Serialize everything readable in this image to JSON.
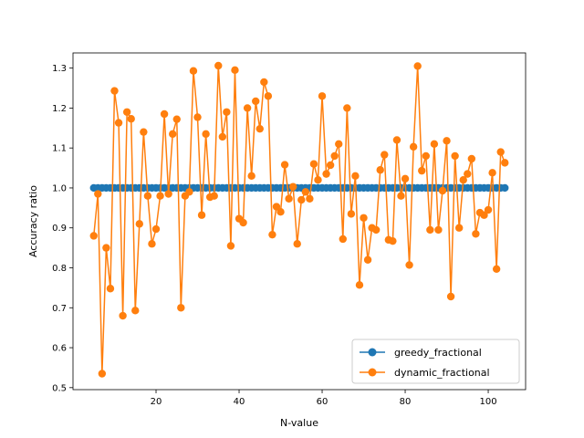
{
  "chart_data": {
    "type": "line",
    "title": "",
    "xlabel": "N-value",
    "ylabel": "Accuracy ratio",
    "xlim": [
      0,
      109
    ],
    "ylim": [
      0.495,
      1.338
    ],
    "xticks": [
      20,
      40,
      60,
      80,
      100
    ],
    "yticks": [
      0.5,
      0.6,
      0.7,
      0.8,
      0.9,
      1.0,
      1.1,
      1.2,
      1.3
    ],
    "grid": false,
    "legend_position": "bottom-right",
    "x": [
      5,
      6,
      7,
      8,
      9,
      10,
      11,
      12,
      13,
      14,
      15,
      16,
      17,
      18,
      19,
      20,
      21,
      22,
      23,
      24,
      25,
      26,
      27,
      28,
      29,
      30,
      31,
      32,
      33,
      34,
      35,
      36,
      37,
      38,
      39,
      40,
      41,
      42,
      43,
      44,
      45,
      46,
      47,
      48,
      49,
      50,
      51,
      52,
      53,
      54,
      55,
      56,
      57,
      58,
      59,
      60,
      61,
      62,
      63,
      64,
      65,
      66,
      67,
      68,
      69,
      70,
      71,
      72,
      73,
      74,
      75,
      76,
      77,
      78,
      79,
      80,
      81,
      82,
      83,
      84,
      85,
      86,
      87,
      88,
      89,
      90,
      91,
      92,
      93,
      94,
      95,
      96,
      97,
      98,
      99,
      100,
      101,
      102,
      103,
      104
    ],
    "series": [
      {
        "name": "greedy_fractional",
        "color": "#1f77b4",
        "values": [
          1,
          1,
          1,
          1,
          1,
          1,
          1,
          1,
          1,
          1,
          1,
          1,
          1,
          1,
          1,
          1,
          1,
          1,
          1,
          1,
          1,
          1,
          1,
          1,
          1,
          1,
          1,
          1,
          1,
          1,
          1,
          1,
          1,
          1,
          1,
          1,
          1,
          1,
          1,
          1,
          1,
          1,
          1,
          1,
          1,
          1,
          1,
          1,
          1,
          1,
          1,
          1,
          1,
          1,
          1,
          1,
          1,
          1,
          1,
          1,
          1,
          1,
          1,
          1,
          1,
          1,
          1,
          1,
          1,
          1,
          1,
          1,
          1,
          1,
          1,
          1,
          1,
          1,
          1,
          1,
          1,
          1,
          1,
          1,
          1,
          1,
          1,
          1,
          1,
          1,
          1,
          1,
          1,
          1,
          1,
          1,
          1,
          1,
          1,
          1
        ]
      },
      {
        "name": "dynamic_fractional",
        "color": "#ff7f0e",
        "values": [
          0.88,
          0.985,
          0.535,
          0.85,
          0.748,
          1.243,
          1.163,
          0.68,
          1.19,
          1.173,
          0.693,
          0.91,
          1.14,
          0.98,
          0.86,
          0.897,
          0.98,
          1.185,
          0.985,
          1.135,
          1.172,
          0.7,
          0.98,
          0.99,
          1.293,
          1.177,
          0.932,
          1.135,
          0.977,
          0.98,
          1.306,
          1.128,
          1.19,
          0.855,
          1.295,
          0.923,
          0.913,
          1.2,
          1.03,
          1.217,
          1.148,
          1.265,
          1.23,
          0.883,
          0.953,
          0.94,
          1.058,
          0.973,
          1.003,
          0.86,
          0.97,
          0.99,
          0.973,
          1.06,
          1.02,
          1.23,
          1.035,
          1.057,
          1.08,
          1.11,
          0.872,
          1.2,
          0.935,
          1.03,
          0.757,
          0.925,
          0.82,
          0.9,
          0.895,
          1.045,
          1.083,
          0.87,
          0.867,
          1.12,
          0.98,
          1.023,
          0.807,
          1.103,
          1.305,
          1.043,
          1.08,
          0.895,
          1.11,
          0.895,
          0.993,
          1.118,
          0.728,
          1.08,
          0.9,
          1.02,
          1.035,
          1.073,
          0.885,
          0.938,
          0.932,
          0.945,
          1.038,
          0.797,
          1.09,
          1.063
        ]
      }
    ]
  }
}
